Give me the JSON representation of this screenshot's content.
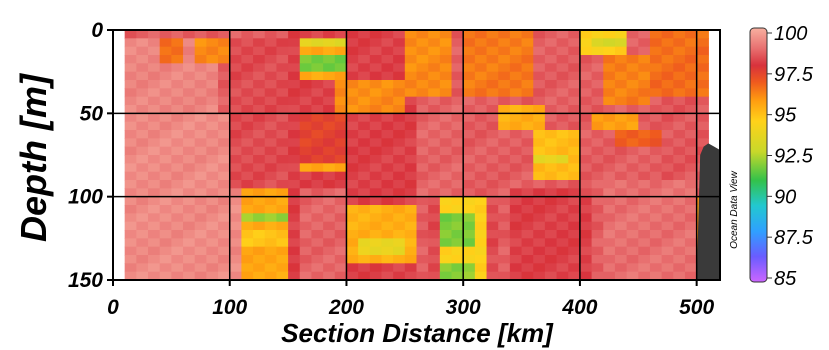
{
  "chart_data": {
    "type": "heatmap",
    "title": "",
    "xlabel": "Section Distance [km]",
    "ylabel": "Depth [m]",
    "xlim": [
      0,
      520
    ],
    "ylim": [
      150,
      0
    ],
    "x_ticks": [
      "0",
      "100",
      "200",
      "300",
      "400",
      "500"
    ],
    "y_ticks": [
      "0",
      "50",
      "100",
      "150"
    ],
    "colorbar": {
      "min": 85,
      "max": 100,
      "ticks": [
        "100",
        "97.5",
        "95",
        "92.5",
        "90",
        "87.5",
        "85"
      ],
      "colors": [
        "#cc66ff",
        "#6a5cff",
        "#2fa0ff",
        "#22c8d0",
        "#33c24a",
        "#c8d82a",
        "#ffd21a",
        "#ff9e10",
        "#ef5a1e",
        "#d8323c",
        "#e87070",
        "#f8b0a0"
      ],
      "color_stops": [
        85,
        86.5,
        88,
        89.5,
        91,
        92.7,
        94.5,
        95.7,
        96.8,
        97.8,
        98.8,
        100
      ]
    },
    "depths": [
      2.5,
      7.5,
      12.5,
      17.5,
      22.5,
      27.5,
      32.5,
      37.5,
      42.5,
      47.5,
      52.5,
      57.5,
      62.5,
      67.5,
      72.5,
      77.5,
      82.5,
      87.5,
      92.5,
      97.5,
      102.5,
      107.5,
      112.5,
      117.5,
      122.5,
      127.5,
      132.5,
      137.5,
      142.5,
      147.5
    ],
    "background_value": 98.5,
    "data_xlim": [
      10,
      510
    ],
    "features": [
      {
        "x": [
          10,
          90
        ],
        "y": [
          5,
          50
        ],
        "v": 99.2
      },
      {
        "x": [
          10,
          110
        ],
        "y": [
          50,
          150
        ],
        "v": 99.3
      },
      {
        "x": [
          40,
          60
        ],
        "y": [
          5,
          20
        ],
        "v": 96.5
      },
      {
        "x": [
          75,
          95
        ],
        "y": [
          5,
          20
        ],
        "v": 96.0
      },
      {
        "x": [
          100,
          150
        ],
        "y": [
          5,
          95
        ],
        "v": 98.2
      },
      {
        "x": [
          110,
          150
        ],
        "y": [
          95,
          150
        ],
        "v": 95.5
      },
      {
        "x": [
          110,
          150
        ],
        "y": [
          108,
          113
        ],
        "v": 92.2
      },
      {
        "x": [
          110,
          150
        ],
        "y": [
          120,
          130
        ],
        "v": 94.8
      },
      {
        "x": [
          150,
          260
        ],
        "y": [
          0,
          150
        ],
        "v": 98.0
      },
      {
        "x": [
          160,
          195
        ],
        "y": [
          5,
          10
        ],
        "v": 93.5
      },
      {
        "x": [
          160,
          195
        ],
        "y": [
          15,
          25
        ],
        "v": 91.8
      },
      {
        "x": [
          160,
          195
        ],
        "y": [
          10,
          15
        ],
        "v": 95.5
      },
      {
        "x": [
          160,
          195
        ],
        "y": [
          25,
          30
        ],
        "v": 95.5
      },
      {
        "x": [
          160,
          195
        ],
        "y": [
          50,
          80
        ],
        "v": 97.4
      },
      {
        "x": [
          160,
          195
        ],
        "y": [
          80,
          86
        ],
        "v": 95.5
      },
      {
        "x": [
          160,
          195
        ],
        "y": [
          95,
          150
        ],
        "v": 98.6
      },
      {
        "x": [
          190,
          250
        ],
        "y": [
          30,
          48
        ],
        "v": 96.0
      },
      {
        "x": [
          205,
          255
        ],
        "y": [
          105,
          142
        ],
        "v": 95.3
      },
      {
        "x": [
          210,
          250
        ],
        "y": [
          125,
          133
        ],
        "v": 93.8
      },
      {
        "x": [
          250,
          290
        ],
        "y": [
          0,
          40
        ],
        "v": 96.0
      },
      {
        "x": [
          260,
          300
        ],
        "y": [
          40,
          100
        ],
        "v": 98.6
      },
      {
        "x": [
          270,
          330
        ],
        "y": [
          100,
          150
        ],
        "v": 98.2
      },
      {
        "x": [
          280,
          315
        ],
        "y": [
          100,
          150
        ],
        "v": 94.5
      },
      {
        "x": [
          285,
          310
        ],
        "y": [
          110,
          130
        ],
        "v": 91.8
      },
      {
        "x": [
          285,
          310
        ],
        "y": [
          140,
          148
        ],
        "v": 92.0
      },
      {
        "x": [
          300,
          360
        ],
        "y": [
          0,
          40
        ],
        "v": 96.3
      },
      {
        "x": [
          330,
          370
        ],
        "y": [
          45,
          58
        ],
        "v": 95.3
      },
      {
        "x": [
          360,
          395
        ],
        "y": [
          60,
          90
        ],
        "v": 95.0
      },
      {
        "x": [
          365,
          390
        ],
        "y": [
          73,
          80
        ],
        "v": 93.6
      },
      {
        "x": [
          340,
          410
        ],
        "y": [
          95,
          150
        ],
        "v": 98.0
      },
      {
        "x": [
          400,
          440
        ],
        "y": [
          0,
          15
        ],
        "v": 94.5
      },
      {
        "x": [
          410,
          435
        ],
        "y": [
          5,
          12
        ],
        "v": 93.2
      },
      {
        "x": [
          420,
          460
        ],
        "y": [
          15,
          45
        ],
        "v": 96.2
      },
      {
        "x": [
          410,
          450
        ],
        "y": [
          50,
          60
        ],
        "v": 95.6
      },
      {
        "x": [
          430,
          480
        ],
        "y": [
          60,
          70
        ],
        "v": 96.8
      },
      {
        "x": [
          460,
          510
        ],
        "y": [
          0,
          40
        ],
        "v": 96.5
      },
      {
        "x": [
          470,
          510
        ],
        "y": [
          40,
          90
        ],
        "v": 98.4
      },
      {
        "x": [
          480,
          510
        ],
        "y": [
          100,
          150
        ],
        "v": 95.8
      },
      {
        "x": [
          420,
          500
        ],
        "y": [
          90,
          150
        ],
        "v": 98.8
      }
    ],
    "bathymetry": {
      "x": [
        500,
        503,
        506,
        510,
        515,
        520
      ],
      "y": [
        150,
        75,
        70,
        68,
        70,
        72
      ],
      "color": "#3a3a3a"
    },
    "grid": true
  },
  "watermark": "Ocean Data View"
}
